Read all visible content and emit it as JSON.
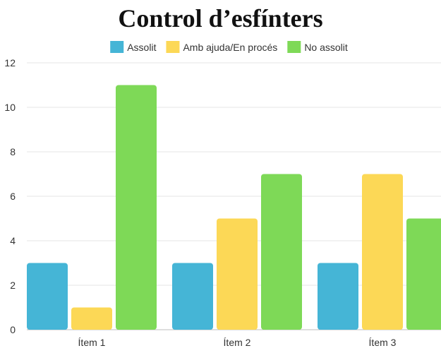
{
  "chart_data": {
    "type": "bar",
    "title": "Control d’esfínters",
    "xlabel": "",
    "ylabel": "",
    "categories": [
      "Ítem 1",
      "Ítem 2",
      "Ítem 3"
    ],
    "series": [
      {
        "name": "Assolit",
        "color": "#45B5D6",
        "values": [
          3,
          3,
          3
        ]
      },
      {
        "name": "Amb ajuda/En procés",
        "color": "#FCD856",
        "values": [
          1,
          5,
          7
        ]
      },
      {
        "name": "No assolit",
        "color": "#7ED957",
        "values": [
          11,
          7,
          5
        ]
      }
    ],
    "ylim": [
      0,
      12
    ],
    "yticks": [
      0,
      2,
      4,
      6,
      8,
      10,
      12
    ],
    "grid": true,
    "legend_position": "top"
  }
}
